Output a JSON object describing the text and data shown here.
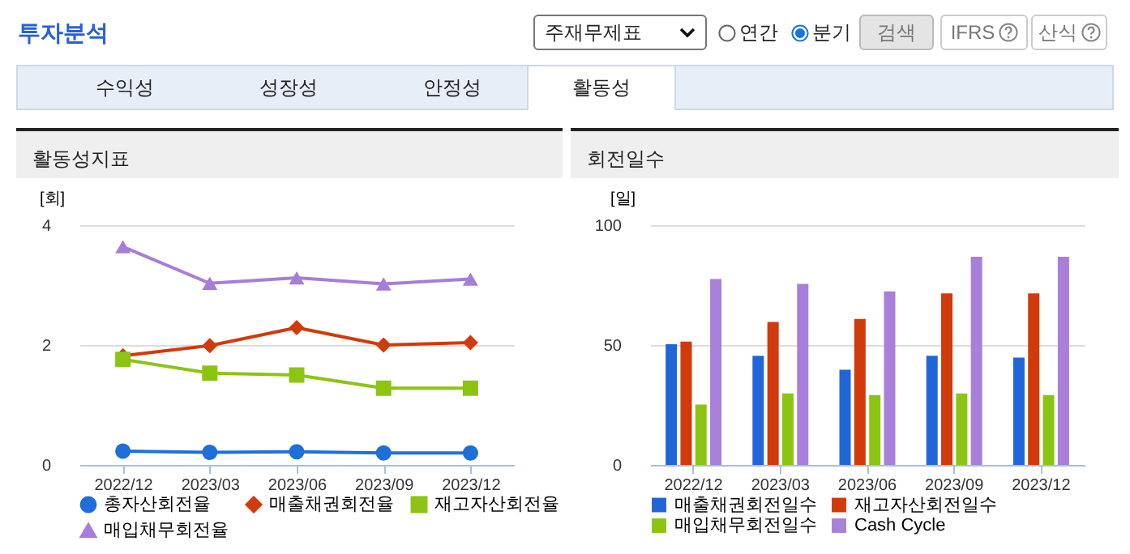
{
  "chart_data": [
    {
      "type": "line",
      "title": "활동성지표",
      "ylabel": "[회]",
      "annotations": [
        "투자분석",
        "주재무제표",
        "연간",
        "분기",
        "검색",
        "IFRS",
        "산식",
        "수익성",
        "성장성",
        "안정성",
        "활동성"
      ],
      "categories": [
        "2022/12",
        "2023/03",
        "2023/06",
        "2023/09",
        "2023/12"
      ],
      "series": [
        {
          "name": "총자산회전율",
          "color": "#1f6fd8",
          "marker": "circle",
          "values": [
            0.23,
            0.21,
            0.22,
            0.2,
            0.2
          ]
        },
        {
          "name": "매출채권회전율",
          "color": "#d13a0a",
          "marker": "diamond",
          "values": [
            1.82,
            1.99,
            2.29,
            2.0,
            2.04
          ]
        },
        {
          "name": "재고자산회전율",
          "color": "#8cc414",
          "marker": "square",
          "values": [
            1.76,
            1.53,
            1.5,
            1.28,
            1.28
          ]
        },
        {
          "name": "매입채무회전율",
          "color": "#a67ed8",
          "marker": "triangle",
          "values": [
            3.64,
            3.03,
            3.12,
            3.02,
            3.1
          ]
        }
      ],
      "ylim": [
        0,
        4
      ],
      "yticks": [
        0,
        2,
        4
      ],
      "grid": "y",
      "legend": "bottom"
    },
    {
      "type": "bar",
      "title": "회전일수",
      "ylabel": "[일]",
      "categories": [
        "2022/12",
        "2023/03",
        "2023/06",
        "2023/09",
        "2023/12"
      ],
      "series": [
        {
          "name": "매출채권회전일수",
          "color": "#2166d9",
          "values": [
            50.3,
            45.5,
            39.7,
            45.5,
            44.8
          ]
        },
        {
          "name": "재고자산회전일수",
          "color": "#d13a0a",
          "values": [
            51.4,
            59.6,
            60.9,
            71.5,
            71.5
          ]
        },
        {
          "name": "매입채무회전일수",
          "color": "#8cc414",
          "values": [
            25.2,
            29.8,
            29.1,
            29.8,
            29.1
          ]
        },
        {
          "name": "Cash Cycle",
          "color": "#a87fd9",
          "values": [
            77.5,
            75.5,
            72.4,
            86.8,
            86.8
          ]
        }
      ],
      "ylim": [
        0,
        100
      ],
      "yticks": [
        0,
        50,
        100
      ],
      "grid": "y",
      "legend": "bottom"
    }
  ]
}
